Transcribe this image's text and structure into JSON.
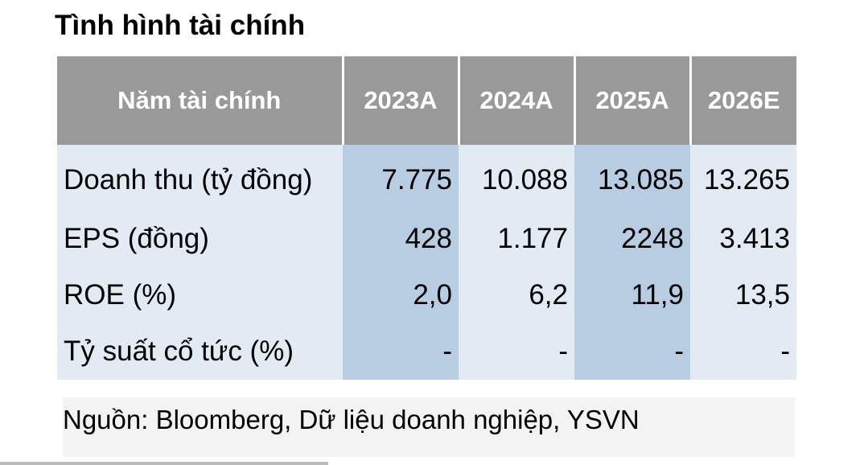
{
  "title": "Tình hình tài chính",
  "table": {
    "header": [
      "Năm tài chính",
      "2023A",
      "2024A",
      "2025A",
      "2026E"
    ],
    "rows": [
      {
        "label": "Doanh thu (tỷ đồng)",
        "values": [
          "7.775",
          "10.088",
          "13.085",
          "13.265"
        ]
      },
      {
        "label": "EPS (đồng)",
        "values": [
          "428",
          "1.177",
          "2248",
          "3.413"
        ]
      },
      {
        "label": "ROE (%)",
        "values": [
          "2,0",
          "6,2",
          "11,9",
          "13,5"
        ]
      },
      {
        "label": "Tỷ suất cổ tức (%)",
        "values": [
          "-",
          "-",
          "-",
          "-"
        ]
      }
    ]
  },
  "source": "Nguồn: Bloomberg, Dữ liệu doanh nghiệp, YSVN",
  "colors": {
    "header_bg": "#999999",
    "cell_light": "#e2ebf3",
    "cell_dark": "#b8cde1"
  }
}
